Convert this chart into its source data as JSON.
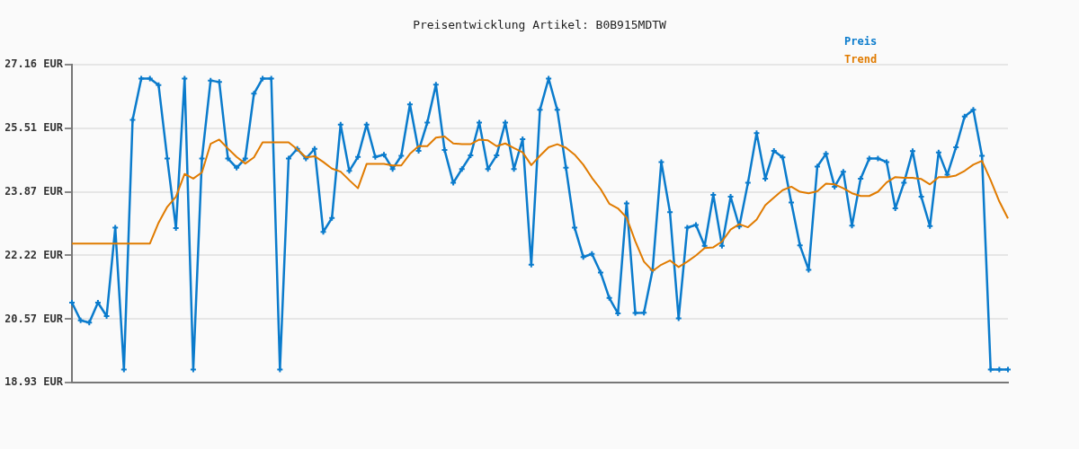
{
  "chart_data": {
    "type": "line",
    "title": "Preisentwicklung Artikel: B0B915MDTW",
    "categories": [
      null,
      null,
      null,
      null,
      null,
      null,
      null,
      null,
      null,
      null,
      null,
      null,
      null,
      null,
      null,
      null,
      null,
      null,
      null,
      null,
      null,
      null,
      null,
      null,
      null,
      null,
      null,
      null,
      null,
      null,
      null,
      null,
      null,
      null,
      null,
      null,
      null,
      null,
      null,
      null,
      null,
      null,
      null,
      null,
      null,
      null,
      null,
      null,
      null,
      null,
      null,
      null,
      null,
      null,
      null,
      null,
      null,
      null,
      null,
      null,
      null,
      null,
      null,
      null,
      null,
      null,
      null,
      null,
      null,
      null,
      null,
      null,
      null,
      null,
      null,
      null,
      null,
      null,
      null,
      null,
      null,
      null,
      null,
      null,
      null,
      null,
      null,
      null,
      null,
      null,
      null,
      null,
      null,
      null,
      null,
      null,
      null,
      null,
      null,
      null,
      null,
      null,
      null,
      null,
      null,
      null,
      null,
      null,
      null
    ],
    "series": [
      {
        "name": "Preis",
        "color": "#0a7bcc",
        "marker": "cross",
        "values": [
          21.0,
          20.54,
          20.48,
          21.0,
          20.65,
          22.94,
          19.27,
          25.73,
          26.8,
          26.8,
          26.63,
          24.73,
          22.93,
          26.8,
          19.27,
          24.73,
          26.75,
          26.71,
          24.73,
          24.49,
          24.73,
          26.41,
          26.8,
          26.8,
          19.27,
          24.73,
          24.98,
          24.73,
          24.98,
          22.83,
          23.19,
          25.61,
          24.41,
          24.77,
          25.61,
          24.77,
          24.83,
          24.46,
          24.8,
          26.13,
          24.93,
          25.66,
          26.64,
          24.95,
          24.1,
          24.46,
          24.81,
          25.66,
          24.46,
          24.81,
          25.66,
          24.46,
          25.23,
          21.98,
          25.99,
          26.8,
          25.99,
          24.49,
          22.94,
          22.18,
          22.26,
          21.78,
          21.12,
          20.72,
          23.57,
          20.73,
          20.74,
          21.85,
          24.64,
          23.34,
          20.59,
          22.94,
          23.01,
          22.47,
          23.79,
          22.47,
          23.74,
          22.97,
          24.1,
          25.39,
          24.21,
          24.93,
          24.76,
          23.59,
          22.48,
          21.85,
          24.52,
          24.85,
          24.0,
          24.39,
          22.99,
          24.21,
          24.73,
          24.73,
          24.64,
          23.44,
          24.1,
          24.92,
          23.74,
          22.98,
          24.89,
          24.31,
          25.02,
          25.82,
          25.99,
          24.8,
          19.27,
          19.27,
          19.27
        ]
      },
      {
        "name": "Trend",
        "color": "#e07b00",
        "marker": "none",
        "values": [
          22.53,
          22.53,
          22.53,
          22.53,
          22.53,
          22.53,
          22.53,
          22.53,
          22.53,
          22.53,
          23.07,
          23.48,
          23.74,
          24.33,
          24.21,
          24.37,
          25.11,
          25.22,
          24.99,
          24.77,
          24.6,
          24.76,
          25.15,
          25.15,
          25.15,
          25.15,
          24.97,
          24.76,
          24.79,
          24.64,
          24.47,
          24.39,
          24.17,
          23.96,
          24.59,
          24.59,
          24.59,
          24.55,
          24.55,
          24.85,
          25.05,
          25.05,
          25.27,
          25.3,
          25.12,
          25.1,
          25.1,
          25.22,
          25.2,
          25.05,
          25.12,
          25.0,
          24.89,
          24.56,
          24.8,
          25.02,
          25.1,
          25.01,
          24.83,
          24.57,
          24.23,
          23.94,
          23.56,
          23.44,
          23.2,
          22.59,
          22.06,
          21.82,
          21.98,
          22.09,
          21.92,
          22.06,
          22.22,
          22.41,
          22.43,
          22.58,
          22.89,
          23.03,
          22.95,
          23.15,
          23.52,
          23.72,
          23.91,
          24.0,
          23.87,
          23.83,
          23.88,
          24.08,
          24.06,
          23.96,
          23.83,
          23.76,
          23.76,
          23.87,
          24.11,
          24.25,
          24.23,
          24.23,
          24.2,
          24.06,
          24.25,
          24.25,
          24.29,
          24.41,
          24.57,
          24.67,
          24.17,
          23.62,
          23.18
        ]
      }
    ],
    "ylim": [
      18.93,
      27.16
    ],
    "yticks": [
      {
        "value": 18.93,
        "label": "18.93 EUR"
      },
      {
        "value": 20.57,
        "label": "20.57 EUR"
      },
      {
        "value": 22.22,
        "label": "22.22 EUR"
      },
      {
        "value": 23.87,
        "label": "23.87 EUR"
      },
      {
        "value": 25.51,
        "label": "25.51 EUR"
      },
      {
        "value": 27.16,
        "label": "27.16 EUR"
      }
    ],
    "grid": "y",
    "legend": "top right",
    "tick_labels": "y"
  }
}
